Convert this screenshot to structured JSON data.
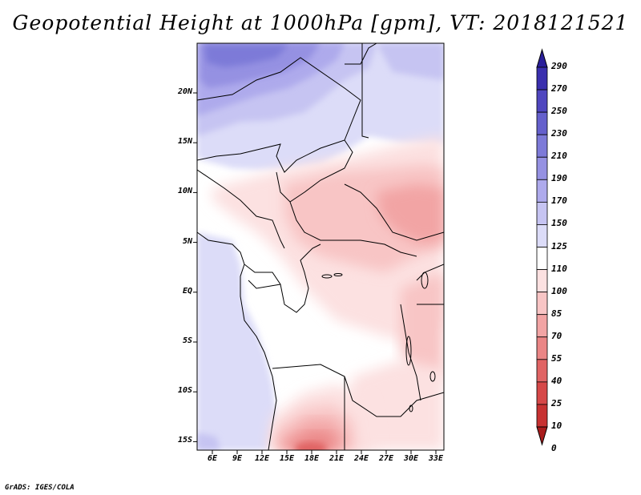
{
  "title": "Geopotential Height at 1000hPa [gpm], VT: 2018121521",
  "credit": "GrADS: IGES/COLA",
  "map": {
    "lat_ticks": [
      "20N",
      "15N",
      "10N",
      "5N",
      "EQ",
      "5S",
      "10S",
      "15S"
    ],
    "lon_ticks": [
      "6E",
      "9E",
      "12E",
      "15E",
      "18E",
      "21E",
      "24E",
      "27E",
      "30E",
      "33E"
    ]
  },
  "colorbar": {
    "labels": [
      "290",
      "270",
      "250",
      "230",
      "210",
      "190",
      "170",
      "150",
      "125",
      "110",
      "100",
      "85",
      "70",
      "55",
      "40",
      "25",
      "10",
      "0"
    ],
    "colors": [
      "#2a1f9a",
      "#3a2fae",
      "#4f46bf",
      "#6560cc",
      "#7d7ad8",
      "#9591e2",
      "#aeaaec",
      "#c6c4f2",
      "#dcdcf8",
      "#ffffff",
      "#fce1e1",
      "#f8c5c5",
      "#f2a4a4",
      "#ea8585",
      "#e06464",
      "#d64848",
      "#c73232",
      "#a81c1c"
    ]
  }
}
